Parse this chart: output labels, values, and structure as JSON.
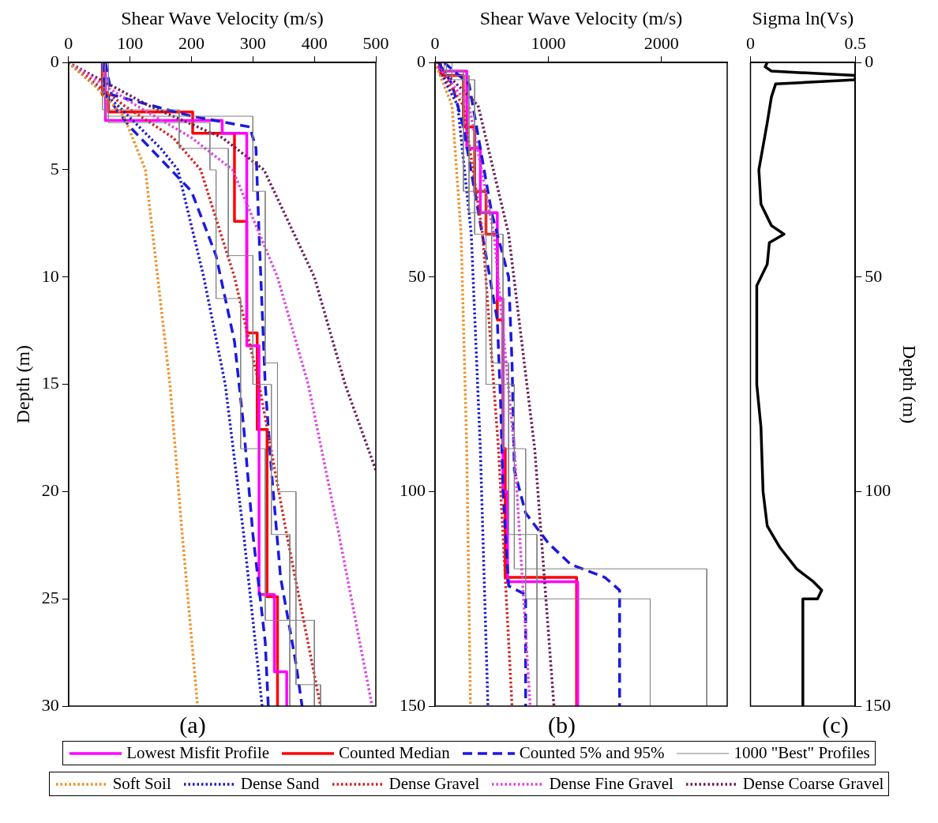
{
  "chart_data": [
    {
      "type": "line",
      "title": "(a)",
      "xlabel": "Shear Wave Velocity (m/s)",
      "ylabel": "Depth (m)",
      "xlim": [
        0,
        500
      ],
      "xticks": [
        0,
        100,
        200,
        300,
        400,
        500
      ],
      "ylim": [
        30,
        0
      ],
      "yticks": [
        0,
        5,
        10,
        15,
        20,
        25,
        30
      ],
      "marker": "none",
      "legend": "bottom",
      "series": [
        {
          "name": "1000 \"Best\" Profiles",
          "color": "#808080",
          "line_style": "solid",
          "x": [
            55,
            55,
            180,
            180,
            260,
            260,
            300,
            300,
            330,
            330,
            360,
            360
          ],
          "values": [
            0,
            2.2,
            2.2,
            4,
            4,
            9,
            9,
            15,
            15,
            22,
            22,
            30
          ]
        },
        {
          "color": "#808080",
          "line_style": "solid",
          "x": [
            65,
            65,
            230,
            230,
            240,
            240,
            280,
            280,
            320,
            320,
            400,
            400
          ],
          "values": [
            0,
            2.8,
            2.8,
            5,
            5,
            11,
            11,
            18,
            18,
            26,
            26,
            30
          ]
        },
        {
          "color": "#808080",
          "line_style": "solid",
          "x": [
            60,
            60,
            300,
            300,
            320,
            320,
            340,
            340,
            370,
            370,
            410,
            410
          ],
          "values": [
            0,
            2.5,
            2.5,
            6,
            6,
            14,
            14,
            20,
            20,
            29,
            29,
            30
          ]
        },
        {
          "name": "Soft Soil",
          "color": "#f28c1c",
          "line_style": "dotted",
          "x": [
            0,
            40,
            90,
            125,
            145,
            165,
            185,
            210
          ],
          "values": [
            0,
            1,
            2.5,
            5,
            10,
            15,
            22,
            30
          ]
        },
        {
          "name": "Dense Sand",
          "color": "#1a1ad0",
          "line_style": "dotted",
          "x": [
            0,
            80,
            150,
            178,
            220,
            255,
            285,
            315
          ],
          "values": [
            0,
            2,
            4,
            5,
            10,
            15,
            22,
            30
          ]
        },
        {
          "name": "Dense Gravel",
          "color": "#d42020",
          "line_style": "dotted",
          "x": [
            0,
            90,
            170,
            215,
            270,
            310,
            355,
            410
          ],
          "values": [
            0,
            2,
            3.5,
            5,
            10,
            15,
            22,
            30
          ]
        },
        {
          "name": "Dense Fine Gravel",
          "color": "#e040e0",
          "line_style": "dotted",
          "x": [
            0,
            110,
            200,
            267,
            340,
            390,
            440,
            494
          ],
          "values": [
            0,
            2,
            3.5,
            5,
            10,
            15,
            22,
            30
          ]
        },
        {
          "name": "Dense Coarse Gravel",
          "color": "#6a1a5a",
          "line_style": "dotted",
          "x": [
            0,
            130,
            250,
            318,
            400,
            450,
            500
          ],
          "values": [
            0,
            2,
            3.5,
            5,
            10,
            15,
            19
          ]
        },
        {
          "name": "Counted 5% and 95%",
          "color": "#1a1ae0",
          "line_style": "dashed",
          "x": [
            55,
            60,
            100,
            150,
            200,
            240,
            270,
            285,
            300,
            320,
            325
          ],
          "values": [
            0,
            1.5,
            3,
            4.5,
            6,
            9,
            13,
            17,
            22,
            27,
            30
          ]
        },
        {
          "color": "#1a1ae0",
          "line_style": "dashed",
          "x": [
            60,
            70,
            200,
            295,
            305,
            310,
            320,
            330,
            345,
            370,
            380
          ],
          "values": [
            0,
            1.5,
            2.5,
            3,
            4,
            8,
            15,
            19,
            24,
            28,
            30
          ]
        },
        {
          "name": "Lowest Misfit Profile",
          "color": "#ff00ff",
          "line_style": "solid",
          "x": [
            60,
            60,
            250,
            250,
            290,
            290,
            310,
            310,
            335,
            335,
            355,
            355
          ],
          "values": [
            0,
            2.7,
            2.7,
            3.3,
            3.3,
            13.2,
            13.2,
            24.8,
            24.8,
            28.4,
            28.4,
            30
          ]
        },
        {
          "name": "Counted Median",
          "color": "#ff0000",
          "line_style": "solid",
          "x": [
            55,
            55,
            65,
            65,
            202,
            202,
            270,
            270,
            290,
            290,
            307,
            307,
            323,
            323,
            340,
            340
          ],
          "values": [
            0,
            1.5,
            1.5,
            2.3,
            2.3,
            3.3,
            3.3,
            7.4,
            7.4,
            12.6,
            12.6,
            17.1,
            17.1,
            24.9,
            24.9,
            30
          ]
        }
      ]
    },
    {
      "type": "line",
      "title": "(b)",
      "xlabel": "Shear Wave Velocity (m/s)",
      "xlim": [
        0,
        2580
      ],
      "xticks": [
        0,
        1000,
        2000
      ],
      "ylim": [
        150,
        0
      ],
      "yticks": [
        0,
        50,
        100,
        150
      ],
      "marker": "none",
      "series": [
        {
          "color": "#808080",
          "line_style": "solid",
          "x": [
            100,
            100,
            300,
            300,
            500,
            500,
            650,
            650,
            900,
            900
          ],
          "values": [
            0,
            3,
            3,
            35,
            35,
            70,
            70,
            110,
            110,
            150
          ]
        },
        {
          "color": "#808080",
          "line_style": "solid",
          "x": [
            150,
            150,
            350,
            350,
            600,
            600,
            800,
            800,
            1900,
            1900
          ],
          "values": [
            0,
            4,
            4,
            40,
            40,
            90,
            90,
            125,
            125,
            150
          ]
        },
        {
          "color": "#808080",
          "line_style": "solid",
          "x": [
            80,
            80,
            250,
            250,
            450,
            450,
            700,
            700,
            2400,
            2400
          ],
          "values": [
            0,
            2,
            2,
            30,
            30,
            75,
            75,
            118,
            118,
            150
          ]
        },
        {
          "color": "#f28c1c",
          "line_style": "dotted",
          "x": [
            0,
            150,
            230,
            280,
            313
          ],
          "values": [
            0,
            10,
            40,
            90,
            150
          ]
        },
        {
          "color": "#1a1ad0",
          "line_style": "dotted",
          "x": [
            0,
            200,
            320,
            400,
            467
          ],
          "values": [
            0,
            10,
            40,
            90,
            150
          ]
        },
        {
          "color": "#d42020",
          "line_style": "dotted",
          "x": [
            0,
            250,
            420,
            560,
            680
          ],
          "values": [
            0,
            10,
            40,
            90,
            150
          ]
        },
        {
          "color": "#e040e0",
          "line_style": "dotted",
          "x": [
            0,
            300,
            520,
            700,
            840
          ],
          "values": [
            0,
            10,
            40,
            90,
            150
          ]
        },
        {
          "color": "#6a1a5a",
          "line_style": "dotted",
          "x": [
            0,
            380,
            650,
            880,
            1050
          ],
          "values": [
            0,
            10,
            40,
            90,
            150
          ]
        },
        {
          "color": "#1a1ae0",
          "line_style": "dashed",
          "x": [
            30,
            150,
            250,
            350,
            450,
            550,
            580,
            600,
            650,
            800,
            800
          ],
          "values": [
            0,
            5,
            15,
            30,
            45,
            60,
            80,
            100,
            122,
            124,
            150
          ]
        },
        {
          "color": "#1a1ae0",
          "line_style": "dashed",
          "x": [
            80,
            300,
            400,
            500,
            650,
            680,
            700,
            800,
            1000,
            1200,
            1500,
            1630,
            1630
          ],
          "values": [
            0,
            5,
            20,
            35,
            50,
            70,
            95,
            105,
            112,
            117,
            120,
            123,
            150
          ]
        },
        {
          "color": "#ff00ff",
          "line_style": "solid",
          "x": [
            40,
            40,
            280,
            280,
            400,
            400,
            550,
            550,
            600,
            600,
            640,
            640,
            1260,
            1260
          ],
          "values": [
            0,
            2,
            2,
            20,
            20,
            35,
            35,
            55,
            55,
            100,
            100,
            121,
            121,
            150
          ]
        },
        {
          "color": "#ff0000",
          "line_style": "solid",
          "x": [
            50,
            50,
            250,
            250,
            350,
            350,
            450,
            450,
            550,
            550,
            600,
            600,
            620,
            620,
            1250,
            1250
          ],
          "values": [
            0,
            3,
            3,
            15,
            15,
            30,
            30,
            40,
            40,
            60,
            60,
            90,
            90,
            120,
            120,
            150
          ]
        }
      ]
    },
    {
      "type": "line",
      "title": "(c)",
      "xlabel": "Sigma ln(Vs)",
      "ylabel": "Depth (m)",
      "xlim": [
        0,
        0.5
      ],
      "xticks": [
        0,
        0.5
      ],
      "ylim": [
        150,
        0
      ],
      "yticks": [
        0,
        50,
        100,
        150
      ],
      "marker": "none",
      "series": [
        {
          "color": "#000000",
          "line_style": "solid",
          "x": [
            0.08,
            0.07,
            0.1,
            0.5,
            0.5,
            0.12,
            0.1,
            0.08,
            0.04,
            0.05,
            0.1,
            0.16,
            0.09,
            0.08,
            0.03,
            0.03,
            0.05,
            0.06,
            0.08,
            0.14,
            0.22,
            0.3,
            0.34,
            0.32,
            0.25,
            0.25
          ],
          "values": [
            0,
            1,
            2,
            3,
            4,
            5,
            8,
            14,
            25,
            33,
            38,
            40,
            42,
            47,
            52,
            75,
            85,
            100,
            108,
            113,
            118,
            121,
            123,
            125,
            125,
            150
          ]
        }
      ]
    }
  ]
}
